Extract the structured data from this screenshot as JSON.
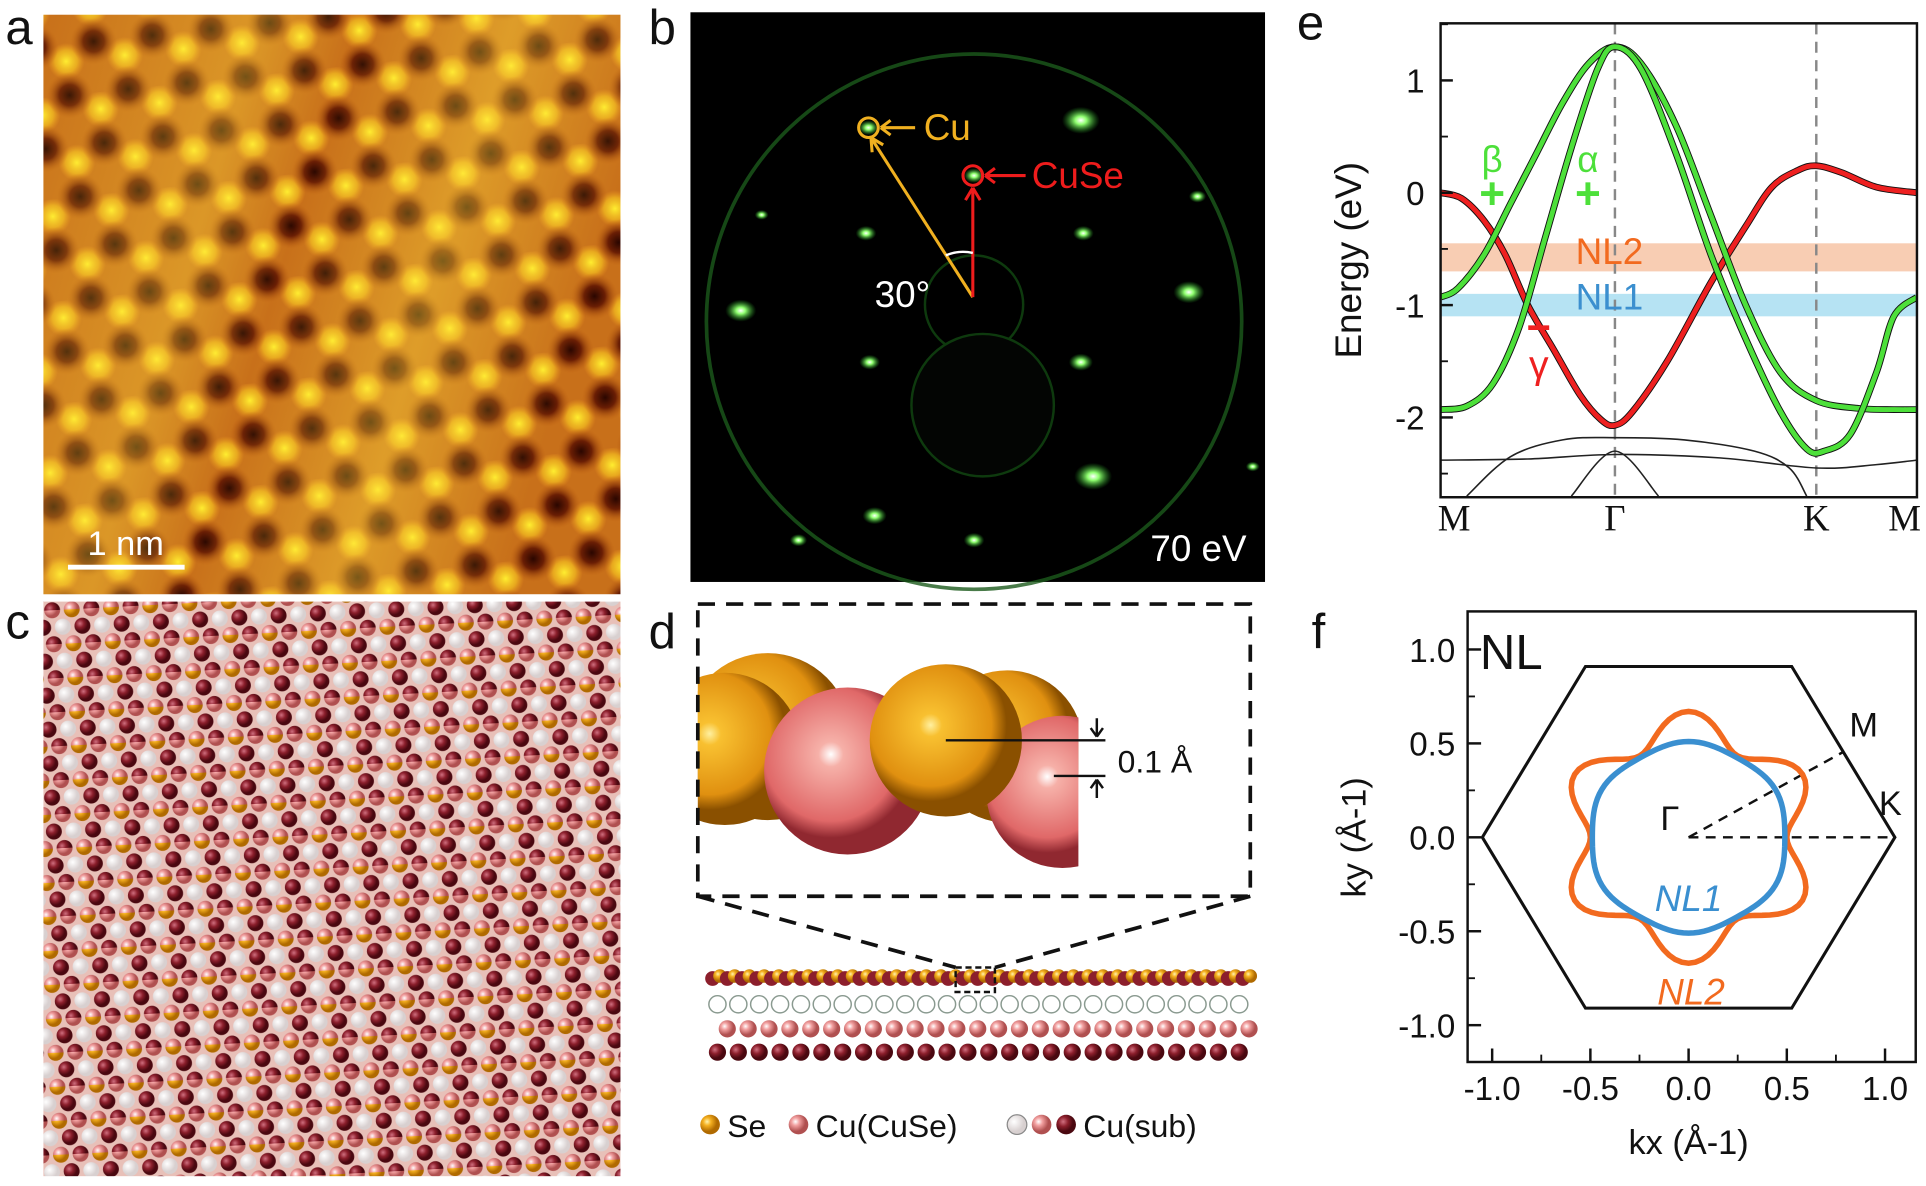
{
  "panel_labels": {
    "a": "a",
    "b": "b",
    "c": "c",
    "d": "d",
    "e": "e",
    "f": "f"
  },
  "panel_a": {
    "scale_bar": "1 nm"
  },
  "panel_b": {
    "cu_label": "Cu",
    "cuse_label": "CuSe",
    "angle_label": "30°",
    "energy_label": "70 eV",
    "cu_color": "#f0b020",
    "cuse_color": "#ee1c1c"
  },
  "panel_d": {
    "height_label": "0.1 Å",
    "legend": {
      "se": "Se",
      "cu_cuse": "Cu(CuSe)",
      "cu_sub": "Cu(sub)"
    },
    "colors": {
      "se": "#f5a81c",
      "cu_cuse": "#ee8080",
      "cu_sub_light": "#f2f2f2",
      "cu_sub_mid": "#f0a0a8",
      "cu_sub_dark": "#8c1f2c"
    }
  },
  "chart_data": [
    {
      "panel": "e",
      "type": "line",
      "ylabel": "Energy (eV)",
      "ylim": [
        -2.7,
        1.5
      ],
      "yticks": [
        "1",
        "0",
        "-1",
        "-2"
      ],
      "ytick_values": [
        1,
        0,
        -1,
        -2
      ],
      "xtick_labels": [
        "M",
        "Γ",
        "K",
        "M"
      ],
      "xtick_values": [
        0,
        1,
        2.155,
        2.732
      ],
      "shaded_bands": [
        {
          "name": "NL2",
          "range": [
            -0.7,
            -0.45
          ],
          "color": "#f7c4a6",
          "label_color": "#f26a1f"
        },
        {
          "name": "NL1",
          "range": [
            -1.1,
            -0.9
          ],
          "color": "#a9def1",
          "label_color": "#3b8fcf"
        }
      ],
      "annotations": {
        "beta": "β",
        "beta_parity": "+",
        "alpha": "α",
        "alpha_parity": "+",
        "gamma": "γ",
        "gamma_parity": "−"
      },
      "series": [
        {
          "color": "#ee2020",
          "points": [
            [
              0,
              0
            ],
            [
              0.12,
              -0.05
            ],
            [
              0.25,
              -0.25
            ],
            [
              0.37,
              -0.55
            ],
            [
              0.5,
              -1.0
            ],
            [
              0.65,
              -1.4
            ],
            [
              0.8,
              -1.8
            ],
            [
              0.92,
              -2.02
            ],
            [
              1,
              -2.07
            ],
            [
              1.1,
              -1.95
            ],
            [
              1.3,
              -1.5
            ],
            [
              1.55,
              -0.8
            ],
            [
              1.75,
              -0.3
            ],
            [
              1.9,
              0.05
            ],
            [
              2.05,
              0.2
            ],
            [
              2.155,
              0.24
            ],
            [
              2.3,
              0.18
            ],
            [
              2.5,
              0.05
            ],
            [
              2.732,
              0
            ]
          ]
        },
        {
          "color": "#4de03a",
          "points": [
            [
              0,
              -0.93
            ],
            [
              0.1,
              -0.85
            ],
            [
              0.25,
              -0.55
            ],
            [
              0.4,
              -0.1
            ],
            [
              0.55,
              0.35
            ],
            [
              0.7,
              0.8
            ],
            [
              0.85,
              1.15
            ],
            [
              1,
              1.3
            ],
            [
              1.15,
              1.15
            ],
            [
              1.35,
              0.6
            ],
            [
              1.55,
              -0.2
            ],
            [
              1.75,
              -1.0
            ],
            [
              1.95,
              -1.6
            ],
            [
              2.155,
              -1.85
            ],
            [
              2.4,
              -1.92
            ],
            [
              2.6,
              -1.93
            ],
            [
              2.732,
              -1.93
            ]
          ]
        },
        {
          "color": "#4de03a",
          "points": [
            [
              0,
              -1.93
            ],
            [
              0.15,
              -1.9
            ],
            [
              0.3,
              -1.7
            ],
            [
              0.45,
              -1.2
            ],
            [
              0.6,
              -0.4
            ],
            [
              0.75,
              0.4
            ],
            [
              0.9,
              1.1
            ],
            [
              1,
              1.3
            ],
            [
              1.15,
              1.1
            ],
            [
              1.35,
              0.35
            ],
            [
              1.55,
              -0.55
            ],
            [
              1.75,
              -1.3
            ],
            [
              1.95,
              -1.95
            ],
            [
              2.1,
              -2.28
            ],
            [
              2.2,
              -2.3
            ],
            [
              2.35,
              -2.15
            ],
            [
              2.5,
              -1.6
            ],
            [
              2.6,
              -1.1
            ],
            [
              2.732,
              -0.93
            ]
          ]
        },
        {
          "color": "#222222",
          "points": [
            [
              0,
              -2.38
            ],
            [
              0.5,
              -2.37
            ],
            [
              1,
              -2.33
            ],
            [
              1.6,
              -2.36
            ],
            [
              2.155,
              -2.45
            ],
            [
              2.5,
              -2.42
            ],
            [
              2.732,
              -2.38
            ]
          ]
        },
        {
          "color": "#222222",
          "points": [
            [
              0.15,
              -2.7
            ],
            [
              0.4,
              -2.35
            ],
            [
              0.7,
              -2.2
            ],
            [
              1,
              -2.18
            ],
            [
              1.4,
              -2.2
            ],
            [
              1.8,
              -2.3
            ],
            [
              2.0,
              -2.45
            ],
            [
              2.1,
              -2.7
            ]
          ]
        },
        {
          "color": "#222222",
          "points": [
            [
              0.75,
              -2.7
            ],
            [
              1,
              -2.3
            ],
            [
              1.25,
              -2.7
            ]
          ]
        }
      ]
    },
    {
      "panel": "f",
      "type": "line",
      "xlabel": "kx (Å-1)",
      "ylabel": "ky (Å-1)",
      "xlim": [
        -1.125,
        1.156
      ],
      "ylim": [
        -1.2,
        1.2
      ],
      "xticks": [
        "-1.0",
        "-0.5",
        "0.0",
        "0.5",
        "1.0"
      ],
      "xtick_values": [
        -1,
        -0.5,
        0,
        0.5,
        1
      ],
      "yticks": [
        "1.0",
        "0.5",
        "0.0",
        "-0.5",
        "-1.0"
      ],
      "ytick_values": [
        1,
        0.5,
        0,
        -0.5,
        -1
      ],
      "title_label": "NL",
      "brillouin_zone": {
        "K": 1.05,
        "shape": "hexagon",
        "color": "#111111"
      },
      "point_labels": {
        "gamma": "Γ",
        "m": "M",
        "k": "K"
      },
      "contours": [
        {
          "name": "NL1",
          "color": "#3a8fd0",
          "mean_radius": 0.5,
          "modulation": 0.01
        },
        {
          "name": "NL2",
          "color": "#f26a1f",
          "mean_radius": 0.585,
          "modulation": 0.085
        }
      ]
    }
  ]
}
